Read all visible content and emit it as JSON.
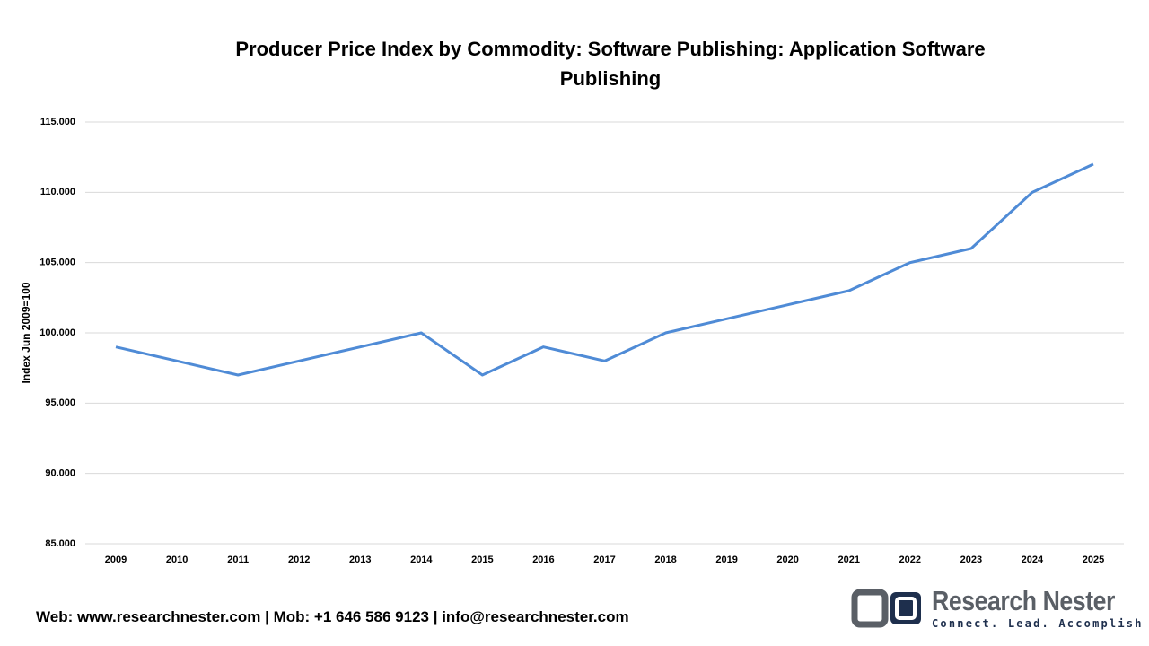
{
  "chart_data": {
    "type": "line",
    "title": "Producer Price Index by Commodity: Software Publishing: Application Software Publishing",
    "y_label": "Index Jun 2009=100",
    "categories": [
      "2009",
      "2010",
      "2011",
      "2012",
      "2013",
      "2014",
      "2015",
      "2016",
      "2017",
      "2018",
      "2019",
      "2020",
      "2021",
      "2022",
      "2023",
      "2024",
      "2025"
    ],
    "values": [
      99,
      98,
      97,
      98,
      99,
      100,
      97,
      99,
      98,
      100,
      101,
      102,
      103,
      105,
      106,
      110,
      112
    ],
    "color": "#4f8bd6",
    "ylim": [
      85,
      115
    ],
    "yticks": [
      {
        "value": 85,
        "label": "85.000"
      },
      {
        "value": 90,
        "label": "90.000"
      },
      {
        "value": 95,
        "label": "95.000"
      },
      {
        "value": 100,
        "label": "100.000"
      },
      {
        "value": 105,
        "label": "105.000"
      },
      {
        "value": 110,
        "label": "110.000"
      },
      {
        "value": 115,
        "label": "115.000"
      }
    ],
    "grid": true
  },
  "footer": {
    "contact": "Web: www.researchnester.com | Mob: +1 646 586 9123 | info@researchnester.com",
    "brand": "Research Nester",
    "tagline": "Connect. Lead. Accomplish"
  }
}
